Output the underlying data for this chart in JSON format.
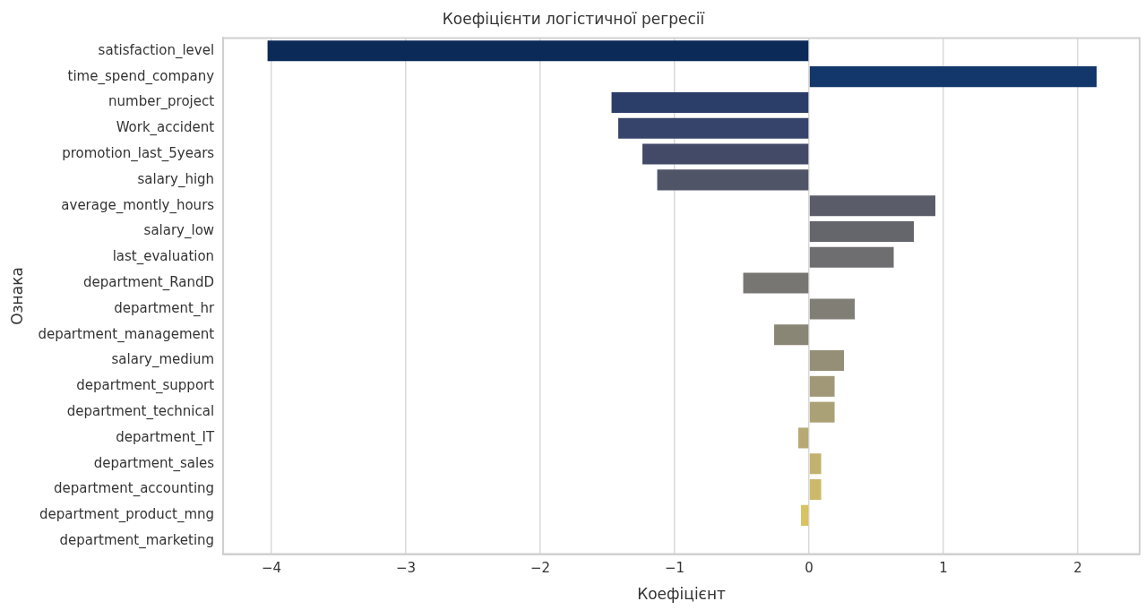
{
  "chart_data": {
    "type": "bar",
    "orientation": "horizontal",
    "title": "Коефіцієнти логістичної регресії",
    "xlabel": "Коефіцієнт",
    "ylabel": "Ознака",
    "categories": [
      "satisfaction_level",
      "time_spend_company",
      "number_project",
      "Work_accident",
      "promotion_last_5years",
      "salary_high",
      "average_montly_hours",
      "salary_low",
      "last_evaluation",
      "department_RandD",
      "department_hr",
      "department_management",
      "salary_medium",
      "department_support",
      "department_technical",
      "department_IT",
      "department_sales",
      "department_accounting",
      "department_product_mng",
      "department_marketing"
    ],
    "values": [
      -4.03,
      2.14,
      -1.47,
      -1.42,
      -1.24,
      -1.13,
      0.94,
      0.78,
      0.63,
      -0.49,
      0.34,
      -0.26,
      0.26,
      0.19,
      0.19,
      -0.08,
      0.09,
      0.09,
      -0.06,
      0
    ],
    "colors": [
      "#0b2a58",
      "#13376b",
      "#2b3e6a",
      "#36436a",
      "#434a68",
      "#4f5467",
      "#5a5d69",
      "#64666c",
      "#6e6e70",
      "#777673",
      "#807e75",
      "#8a8675",
      "#958f77",
      "#a09877",
      "#aba176",
      "#b6a973",
      "#c2b26f",
      "#ccb96a",
      "#d8c261",
      "#e3cb58"
    ],
    "xlim": [
      -4.36,
      2.46
    ],
    "xticks": [
      {
        "value": -4,
        "label": "−4"
      },
      {
        "value": -3,
        "label": "−3"
      },
      {
        "value": -2,
        "label": "−2"
      },
      {
        "value": -1,
        "label": "−1"
      },
      0,
      1,
      2
    ],
    "grid": "x"
  }
}
